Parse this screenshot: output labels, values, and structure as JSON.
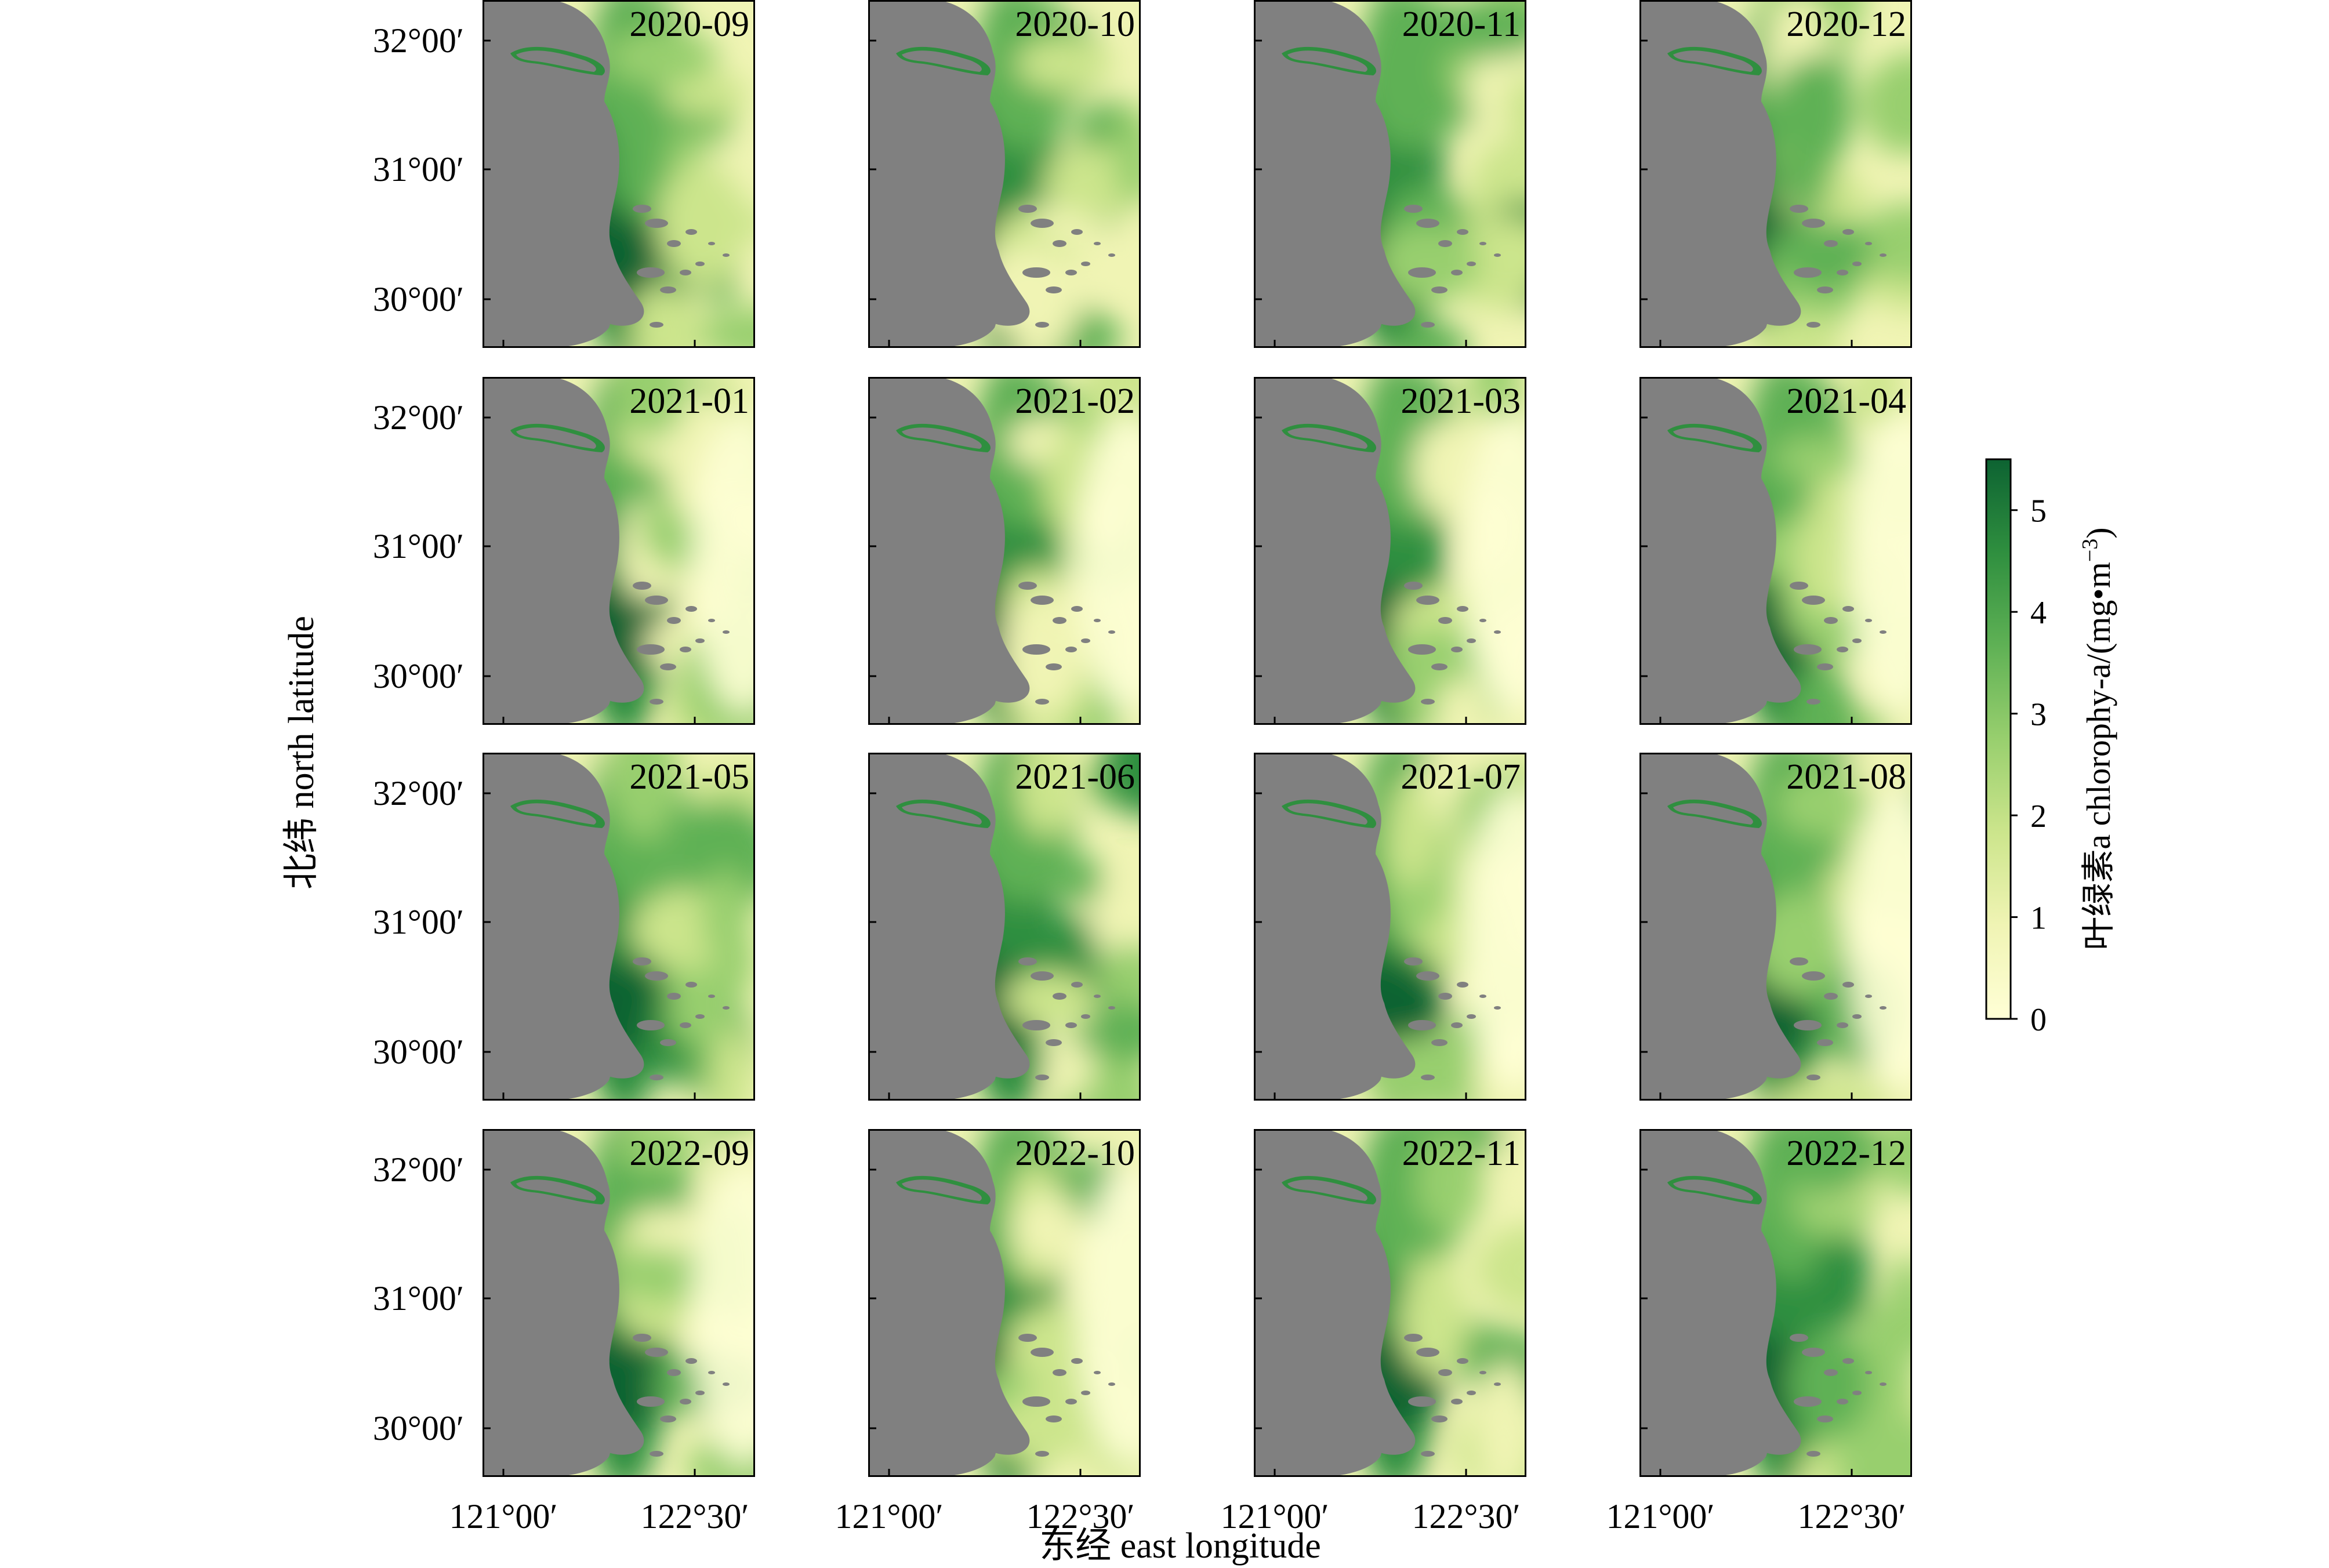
{
  "figure": {
    "y_axis_title": "北纬 north latitude",
    "x_axis_title": "东经 east longitude",
    "y_tick_labels": [
      "32°00′",
      "31°00′",
      "30°00′"
    ],
    "x_tick_labels": [
      "121°00′",
      "122°30′"
    ],
    "colorbar": {
      "title_main": "叶绿素a chlorophy-a/(mg•m",
      "title_sup1": "−3",
      "title_end": ")",
      "ticks": [
        0,
        1,
        2,
        3,
        4,
        5
      ],
      "range": [
        0,
        5.5
      ],
      "colors": [
        "#ffffd6",
        "#f0f4b4",
        "#cce58c",
        "#98cf6e",
        "#5fb155",
        "#2f8f3f",
        "#0d6332"
      ]
    },
    "land_color": "#808080",
    "panels": [
      {
        "date": "2020-09",
        "intensity": 0.7
      },
      {
        "date": "2020-10",
        "intensity": 0.65
      },
      {
        "date": "2020-11",
        "intensity": 0.78
      },
      {
        "date": "2020-12",
        "intensity": 0.8
      },
      {
        "date": "2021-01",
        "intensity": 0.45
      },
      {
        "date": "2021-02",
        "intensity": 0.35
      },
      {
        "date": "2021-03",
        "intensity": 0.45
      },
      {
        "date": "2021-04",
        "intensity": 0.5
      },
      {
        "date": "2021-05",
        "intensity": 0.72
      },
      {
        "date": "2021-06",
        "intensity": 0.75
      },
      {
        "date": "2021-07",
        "intensity": 0.5
      },
      {
        "date": "2021-08",
        "intensity": 0.55
      },
      {
        "date": "2022-09",
        "intensity": 0.5
      },
      {
        "date": "2022-10",
        "intensity": 0.55
      },
      {
        "date": "2022-11",
        "intensity": 0.6
      },
      {
        "date": "2022-12",
        "intensity": 0.65
      }
    ]
  }
}
